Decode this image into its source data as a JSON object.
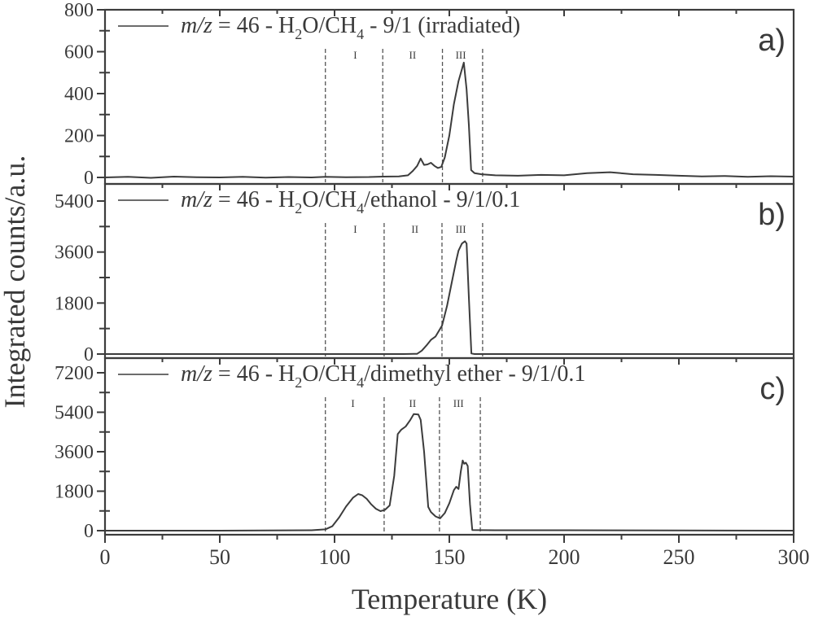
{
  "chart_data": {
    "type": "line",
    "layout": "3 vertically stacked panels sharing x-axis",
    "xlabel": "Temperature (K)",
    "ylabel": "Integrated counts/a.u.",
    "xlim": [
      0,
      300
    ],
    "xticks": [
      0,
      50,
      100,
      150,
      200,
      250,
      300
    ],
    "x_minor_step": 25,
    "grid": false,
    "region_labels": [
      "I",
      "II",
      "III"
    ],
    "panels": [
      {
        "id": "a",
        "letter": "a)",
        "legend": {
          "prefix": "m/z",
          "text_parts": [
            " = 46 -  H",
            "2",
            "O/CH",
            "4",
            " - 9/1 (irradiated)"
          ]
        },
        "legend_full": "m/z = 46 - H2O/CH4 - 9/1 (irradiated)",
        "ylim": [
          0,
          800
        ],
        "yticks": [
          0,
          200,
          400,
          600,
          800
        ],
        "y_minor_step": 100,
        "dividers_K": [
          96,
          121,
          147,
          164.5
        ],
        "region_label_K": [
          109,
          134,
          155
        ],
        "series": [
          {
            "name": "m/z = 46 - H2O/CH4 - 9/1 (irradiated)",
            "x": [
              0,
              10,
              20,
              30,
              40,
              50,
              60,
              70,
              80,
              90,
              96,
              105,
              115,
              121,
              128,
              132,
              134,
              136,
              137.5,
              139,
              140.5,
              142,
              143.5,
              145,
              146.5,
              148,
              150,
              152,
              154,
              156.3,
              157.5,
              158.5,
              159.5,
              161,
              164,
              170,
              180,
              190,
              200,
              210,
              220,
              230,
              240,
              250,
              260,
              270,
              280,
              290,
              300
            ],
            "y": [
              0,
              3,
              -2,
              4,
              1,
              0,
              3,
              -1,
              2,
              0,
              3,
              1,
              2,
              4,
              5,
              10,
              30,
              55,
              90,
              60,
              62,
              70,
              55,
              45,
              50,
              95,
              200,
              350,
              460,
              548,
              420,
              250,
              35,
              20,
              15,
              10,
              8,
              12,
              10,
              20,
              25,
              15,
              12,
              8,
              5,
              7,
              3,
              6,
              4
            ]
          }
        ]
      },
      {
        "id": "b",
        "letter": "b)",
        "legend": {
          "prefix": "m/z",
          "text_parts": [
            " = 46 - H",
            "2",
            "O/CH",
            "4",
            "/ethanol - 9/1/0.1"
          ]
        },
        "legend_full": "m/z = 46 - H2O/CH4/ethanol - 9/1/0.1",
        "ylim": [
          0,
          5400
        ],
        "yticks": [
          0,
          1800,
          3600,
          5400
        ],
        "y_minor_step": 900,
        "dividers_K": [
          96,
          121.6,
          146.8,
          164.5
        ],
        "region_label_K": [
          109,
          135,
          155
        ],
        "series": [
          {
            "name": "m/z = 46 - H2O/CH4/ethanol - 9/1/0.1",
            "x": [
              0,
              50,
              100,
              130,
              136,
              138,
              140,
              142,
              144,
              146.8,
              149,
              151,
              153,
              154,
              155.5,
              156.8,
              157.5,
              158.5,
              159.6,
              161,
              200,
              250,
              300
            ],
            "y": [
              0,
              0,
              0,
              0,
              10,
              120,
              300,
              500,
              620,
              1000,
              1700,
              2500,
              3300,
              3650,
              3900,
              3980,
              3900,
              2000,
              20,
              0,
              0,
              0,
              0
            ]
          }
        ]
      },
      {
        "id": "c",
        "letter": "c)",
        "legend": {
          "prefix": "m/z",
          "text_parts": [
            " = 46 - H",
            "2",
            "O/CH",
            "4",
            "/dimethyl ether - 9/1/0.1"
          ]
        },
        "legend_full": "m/z = 46 - H2O/CH4/dimethyl ether - 9/1/0.1",
        "ylim": [
          0,
          7200
        ],
        "yticks": [
          0,
          1800,
          3600,
          5400,
          7200
        ],
        "y_minor_step": 900,
        "dividers_K": [
          96,
          121.6,
          145.7,
          163.5
        ],
        "region_label_K": [
          108,
          134,
          154
        ],
        "series": [
          {
            "name": "m/z = 46 - H2O/CH4/dimethyl ether - 9/1/0.1",
            "x": [
              0,
              50,
              90,
              96,
              99,
              102,
              105,
              108,
              110.3,
              112,
              114,
              116,
              118,
              120,
              122,
              124,
              126,
              127.5,
              129,
              131,
              133,
              134.5,
              136.5,
              137.5,
              139,
              140.8,
              142,
              144,
              146,
              148,
              150,
              152,
              153,
              154,
              155,
              155.8,
              156.5,
              157.2,
              158,
              159,
              160,
              170,
              200,
              250,
              300
            ],
            "y": [
              0,
              0,
              20,
              60,
              200,
              600,
              1100,
              1500,
              1670,
              1620,
              1450,
              1200,
              1000,
              890,
              950,
              1150,
              2500,
              4400,
              4600,
              4750,
              5050,
              5320,
              5300,
              5050,
              3600,
              1080,
              850,
              650,
              560,
              800,
              1250,
              1850,
              2000,
              1900,
              2700,
              3200,
              3050,
              3100,
              2950,
              1200,
              30,
              20,
              20,
              10,
              0
            ]
          }
        ]
      }
    ]
  }
}
